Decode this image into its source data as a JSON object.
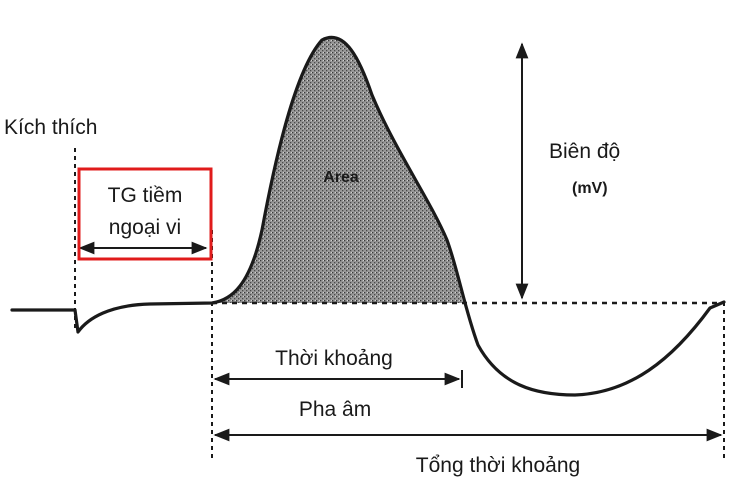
{
  "labels": {
    "stimulus": "Kích thích",
    "latency_line1": "TG tiềm",
    "latency_line2": "ngoại vi",
    "area": "Area",
    "amplitude": "Biên độ",
    "amplitude_unit": "(mV)",
    "duration": "Thời khoảng",
    "negative_phase": "Pha âm",
    "total_duration": "Tổng thời khoảng"
  },
  "colors": {
    "ink": "#1a1a1a",
    "highlight_box": "#e01b1b",
    "area_fill": "#8c8c8c"
  }
}
